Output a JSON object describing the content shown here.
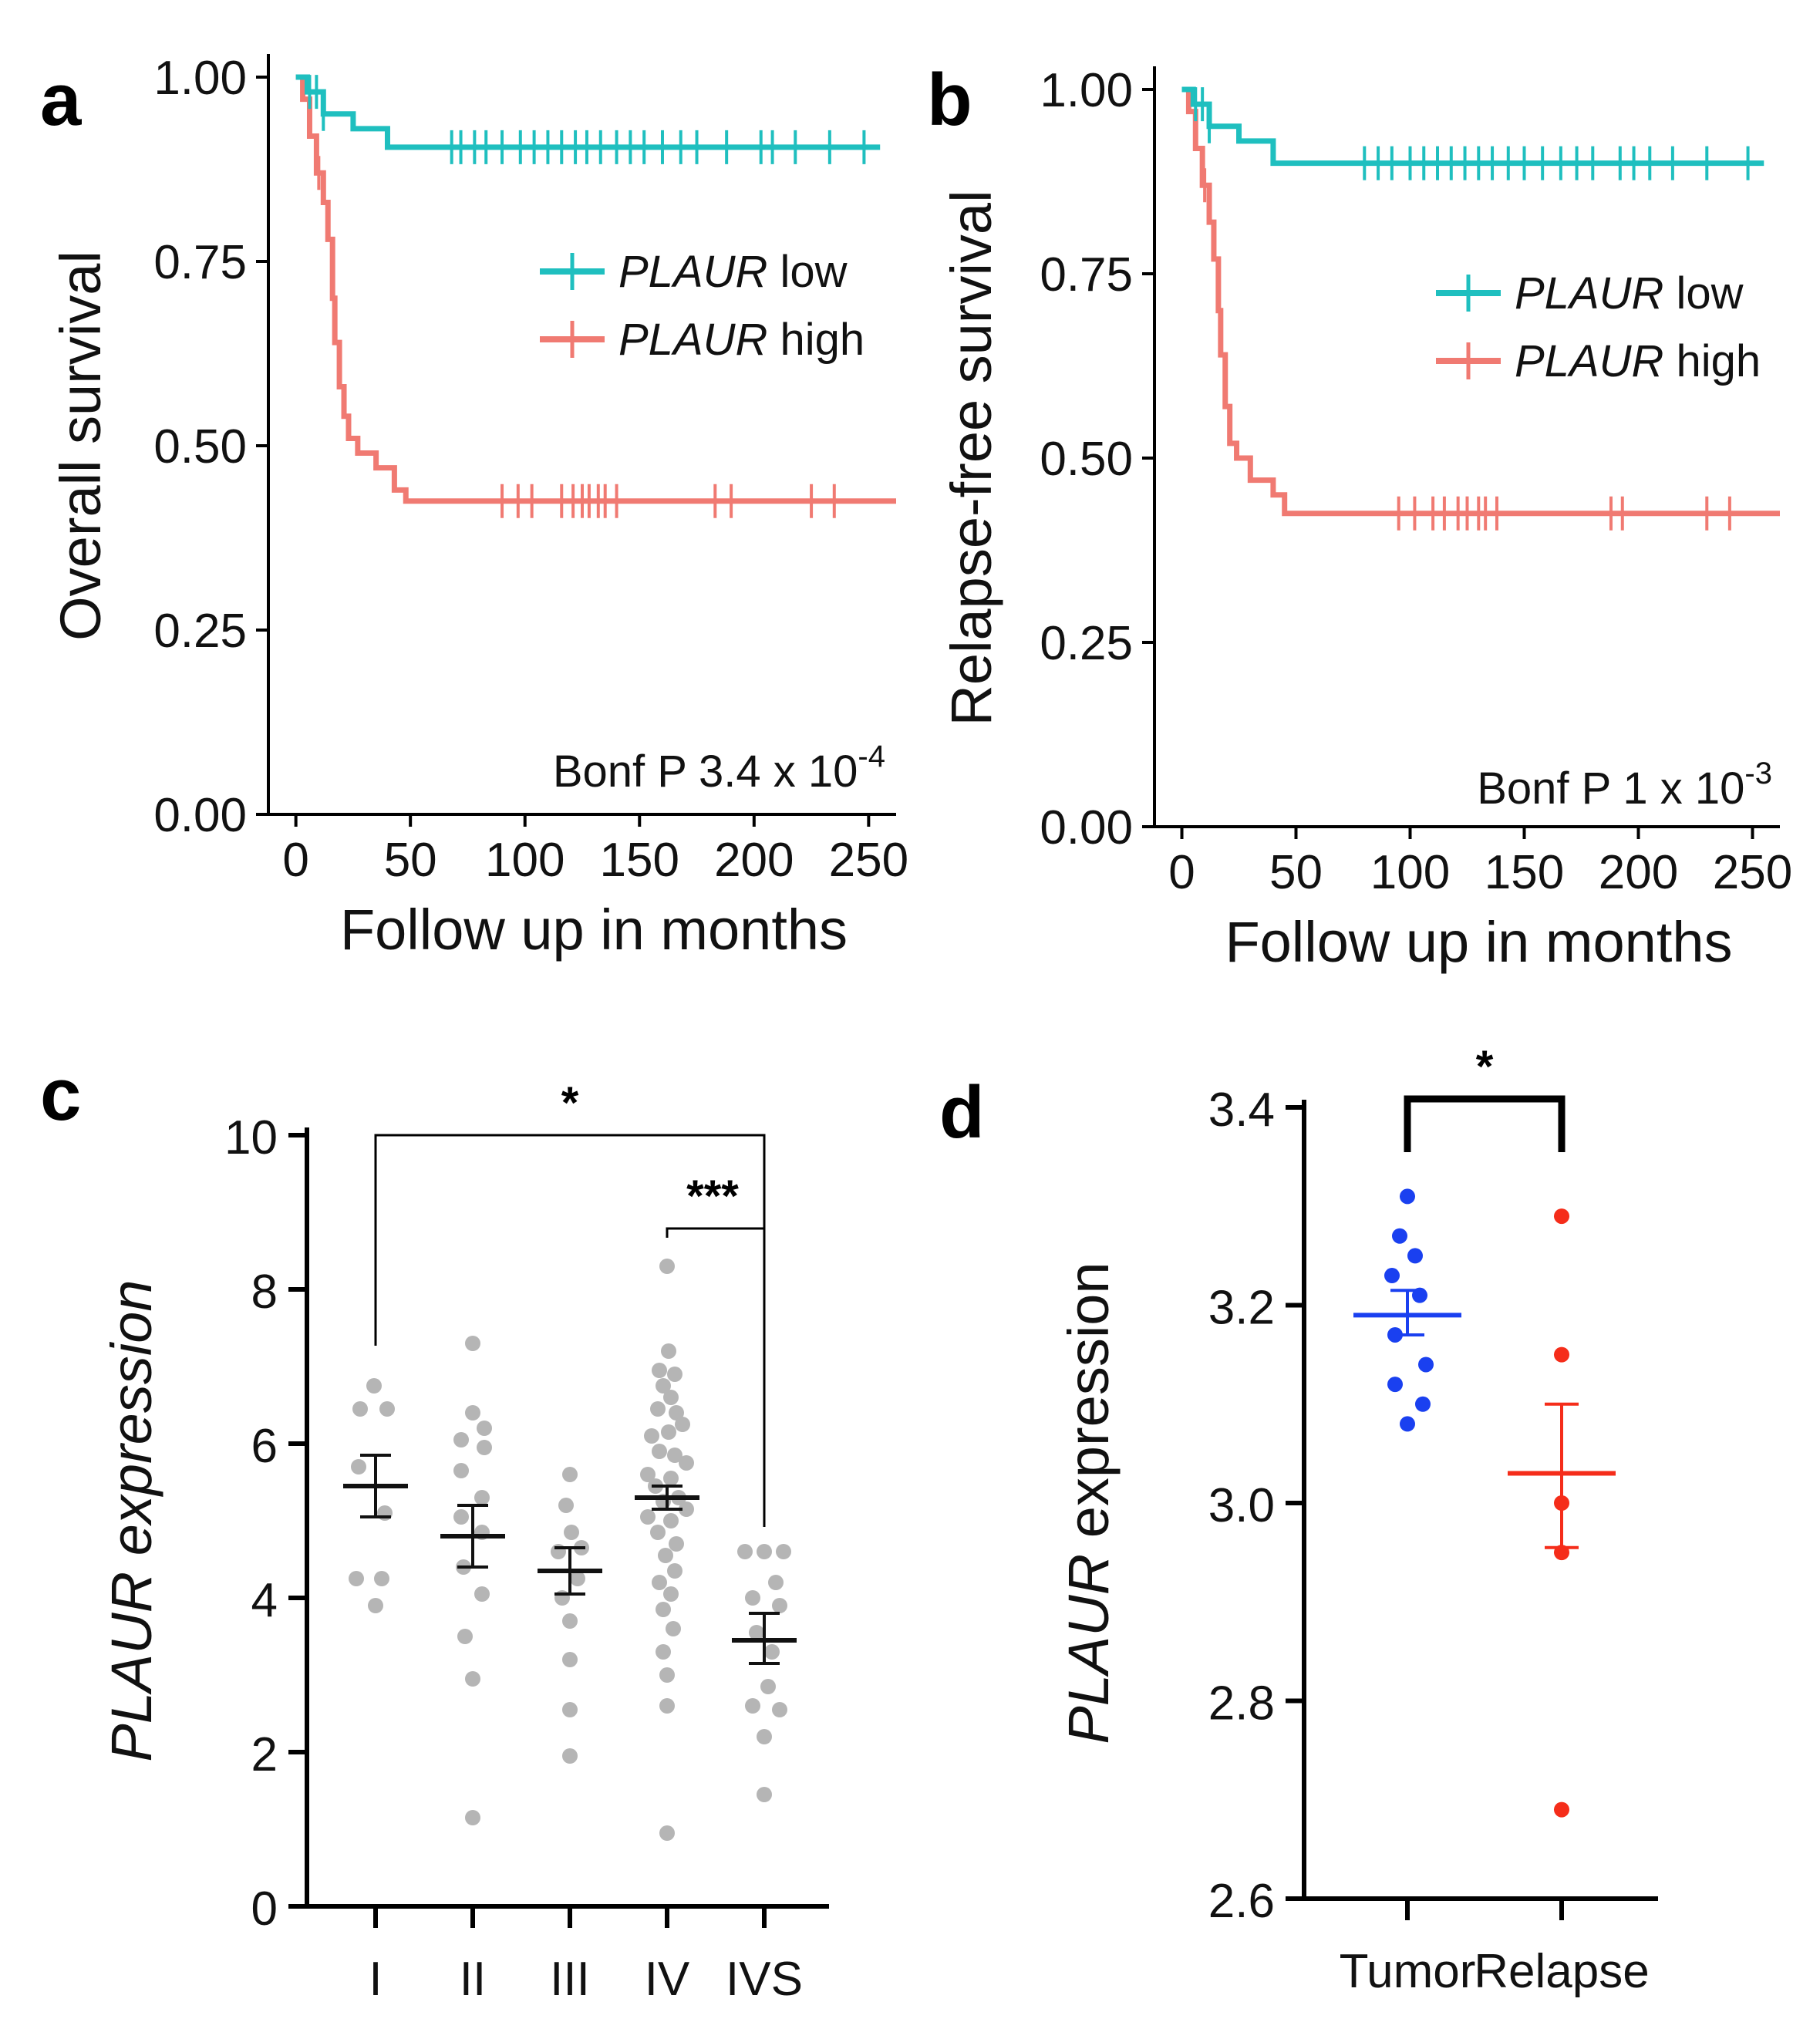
{
  "panels": {
    "a": "a",
    "b": "b",
    "c": "c",
    "d": "d"
  },
  "colors": {
    "low": "#1fbfbf",
    "high": "#f07a72",
    "dots": "#b5b5b5",
    "tumor": "#1a40f0",
    "relapse": "#f52d1a"
  },
  "chart_data": [
    {
      "id": "a",
      "type": "line",
      "title": "",
      "ylabel": "Overall survival",
      "xlabel": "Follow up in months",
      "xlim": [
        -12,
        262
      ],
      "ylim": [
        0,
        1.0
      ],
      "xticks": [
        0,
        50,
        100,
        150,
        200,
        250
      ],
      "yticks": [
        0.0,
        0.25,
        0.5,
        0.75,
        1.0
      ],
      "xtick_labels": [
        "0",
        "50",
        "100",
        "150",
        "200",
        "250"
      ],
      "ytick_labels": [
        "0.00",
        "0.25",
        "0.50",
        "0.75",
        "1.00"
      ],
      "legend": [
        {
          "gene": "PLAUR",
          "label": " low"
        },
        {
          "gene": "PLAUR",
          "label": " high"
        }
      ],
      "annotation": {
        "text": "Bonf P 3.4 x 10",
        "sup": "-4"
      },
      "series": [
        {
          "name": "PLAUR low",
          "steps": [
            [
              0,
              1.0
            ],
            [
              5,
              0.98
            ],
            [
              12,
              0.95
            ],
            [
              25,
              0.93
            ],
            [
              40,
              0.905
            ],
            [
              255,
              0.905
            ]
          ],
          "censor_x": [
            6,
            9,
            12,
            68,
            72,
            78,
            83,
            90,
            98,
            104,
            110,
            116,
            122,
            127,
            133,
            140,
            146,
            152,
            160,
            168,
            175,
            188,
            203,
            208,
            218,
            233,
            248
          ]
        },
        {
          "name": "PLAUR high",
          "steps": [
            [
              0,
              1.0
            ],
            [
              3,
              0.97
            ],
            [
              6,
              0.92
            ],
            [
              9,
              0.87
            ],
            [
              12,
              0.83
            ],
            [
              14,
              0.78
            ],
            [
              16,
              0.7
            ],
            [
              17,
              0.64
            ],
            [
              19,
              0.58
            ],
            [
              21,
              0.54
            ],
            [
              23,
              0.51
            ],
            [
              27,
              0.49
            ],
            [
              35,
              0.47
            ],
            [
              43,
              0.44
            ],
            [
              48,
              0.425
            ],
            [
              262,
              0.425
            ]
          ],
          "censor_x": [
            10,
            90,
            97,
            103,
            116,
            121,
            125,
            128,
            132,
            135,
            140,
            183,
            190,
            225,
            235
          ]
        }
      ]
    },
    {
      "id": "b",
      "type": "line",
      "title": "",
      "ylabel": "Relapse-free survival",
      "xlabel": "Follow up in months",
      "xlim": [
        -12,
        262
      ],
      "ylim": [
        0,
        1.0
      ],
      "xticks": [
        0,
        50,
        100,
        150,
        200,
        250
      ],
      "yticks": [
        0.0,
        0.25,
        0.5,
        0.75,
        1.0
      ],
      "xtick_labels": [
        "0",
        "50",
        "100",
        "150",
        "200",
        "250"
      ],
      "ytick_labels": [
        "0.00",
        "0.25",
        "0.50",
        "0.75",
        "1.00"
      ],
      "legend": [
        {
          "gene": "PLAUR",
          "label": " low"
        },
        {
          "gene": "PLAUR",
          "label": " high"
        }
      ],
      "annotation": {
        "text": "Bonf P 1 x 10",
        "sup": "-3"
      },
      "series": [
        {
          "name": "PLAUR low",
          "steps": [
            [
              0,
              1.0
            ],
            [
              5,
              0.98
            ],
            [
              12,
              0.95
            ],
            [
              25,
              0.93
            ],
            [
              40,
              0.9
            ],
            [
              255,
              0.9
            ]
          ],
          "censor_x": [
            6,
            9,
            12,
            80,
            86,
            92,
            100,
            106,
            112,
            118,
            124,
            130,
            136,
            143,
            150,
            158,
            166,
            173,
            180,
            192,
            198,
            205,
            215,
            230,
            248
          ]
        },
        {
          "name": "PLAUR high",
          "steps": [
            [
              0,
              1.0
            ],
            [
              3,
              0.97
            ],
            [
              6,
              0.92
            ],
            [
              9,
              0.87
            ],
            [
              12,
              0.82
            ],
            [
              14,
              0.77
            ],
            [
              16,
              0.7
            ],
            [
              17,
              0.64
            ],
            [
              19,
              0.57
            ],
            [
              21,
              0.52
            ],
            [
              24,
              0.5
            ],
            [
              30,
              0.47
            ],
            [
              40,
              0.45
            ],
            [
              45,
              0.425
            ],
            [
              262,
              0.425
            ]
          ],
          "censor_x": [
            10,
            95,
            102,
            110,
            115,
            121,
            125,
            130,
            133,
            138,
            188,
            193,
            230,
            240
          ]
        }
      ]
    },
    {
      "id": "c",
      "type": "scatter",
      "title": "",
      "ylabel": "PLAUR expression",
      "ylabel_italic_word": "PLAUR",
      "ylabel_rest": " expression",
      "xlabel": "",
      "categories": [
        "I",
        "II",
        "III",
        "IV",
        "IVS"
      ],
      "ylim": [
        0,
        10
      ],
      "yticks": [
        0,
        2,
        4,
        6,
        8,
        10
      ],
      "ytick_labels": [
        "0",
        "2",
        "4",
        "6",
        "8",
        "10"
      ],
      "groups": [
        {
          "name": "I",
          "mean": 5.45,
          "sem_low": 5.05,
          "sem_high": 5.85,
          "points": [
            [
              -0.02,
              6.75
            ],
            [
              -0.2,
              6.45
            ],
            [
              0.15,
              6.45
            ],
            [
              -0.22,
              5.7
            ],
            [
              0.12,
              5.1
            ],
            [
              -0.25,
              4.25
            ],
            [
              0.08,
              4.25
            ],
            [
              0.0,
              3.9
            ]
          ]
        },
        {
          "name": "II",
          "mean": 4.8,
          "sem_low": 4.4,
          "sem_high": 5.2,
          "points": [
            [
              0.0,
              7.3
            ],
            [
              0.0,
              6.4
            ],
            [
              0.15,
              6.2
            ],
            [
              -0.15,
              6.05
            ],
            [
              0.15,
              5.95
            ],
            [
              -0.15,
              5.65
            ],
            [
              0.12,
              5.3
            ],
            [
              -0.15,
              5.05
            ],
            [
              0.12,
              4.85
            ],
            [
              -0.12,
              4.4
            ],
            [
              0.12,
              4.05
            ],
            [
              -0.1,
              3.5
            ],
            [
              0.0,
              2.95
            ],
            [
              0.0,
              1.15
            ]
          ]
        },
        {
          "name": "III",
          "mean": 4.35,
          "sem_low": 4.05,
          "sem_high": 4.65,
          "points": [
            [
              0.0,
              5.6
            ],
            [
              -0.05,
              5.2
            ],
            [
              0.02,
              4.85
            ],
            [
              0.15,
              4.65
            ],
            [
              -0.15,
              4.6
            ],
            [
              0.1,
              4.25
            ],
            [
              -0.1,
              4.0
            ],
            [
              0.0,
              3.7
            ],
            [
              0.0,
              3.2
            ],
            [
              0.0,
              2.55
            ],
            [
              0.0,
              1.95
            ]
          ]
        },
        {
          "name": "IV",
          "mean": 5.3,
          "sem_low": 5.15,
          "sem_high": 5.45,
          "points": [
            [
              0.0,
              8.3
            ],
            [
              0.02,
              7.2
            ],
            [
              -0.1,
              6.95
            ],
            [
              0.1,
              6.9
            ],
            [
              -0.05,
              6.75
            ],
            [
              0.05,
              6.6
            ],
            [
              -0.12,
              6.45
            ],
            [
              0.12,
              6.4
            ],
            [
              0.2,
              6.25
            ],
            [
              0.02,
              6.15
            ],
            [
              -0.2,
              6.1
            ],
            [
              -0.1,
              5.9
            ],
            [
              0.1,
              5.85
            ],
            [
              0.25,
              5.75
            ],
            [
              -0.25,
              5.6
            ],
            [
              0.05,
              5.55
            ],
            [
              -0.15,
              5.45
            ],
            [
              0.15,
              5.3
            ],
            [
              -0.05,
              5.25
            ],
            [
              0.25,
              5.15
            ],
            [
              -0.25,
              5.05
            ],
            [
              0.05,
              5.0
            ],
            [
              -0.12,
              4.85
            ],
            [
              0.12,
              4.7
            ],
            [
              -0.02,
              4.55
            ],
            [
              0.1,
              4.35
            ],
            [
              -0.1,
              4.2
            ],
            [
              0.05,
              4.05
            ],
            [
              -0.05,
              3.85
            ],
            [
              0.08,
              3.6
            ],
            [
              -0.05,
              3.3
            ],
            [
              0.0,
              3.0
            ],
            [
              0.0,
              2.6
            ],
            [
              0.0,
              0.95
            ]
          ]
        },
        {
          "name": "IVS",
          "mean": 3.45,
          "sem_low": 3.15,
          "sem_high": 3.8,
          "points": [
            [
              -0.25,
              4.6
            ],
            [
              0.0,
              4.6
            ],
            [
              0.25,
              4.6
            ],
            [
              0.15,
              4.2
            ],
            [
              -0.15,
              4.0
            ],
            [
              0.2,
              3.9
            ],
            [
              -0.1,
              3.55
            ],
            [
              0.1,
              3.3
            ],
            [
              0.05,
              2.85
            ],
            [
              -0.15,
              2.6
            ],
            [
              0.2,
              2.55
            ],
            [
              0.0,
              2.2
            ],
            [
              0.0,
              1.45
            ]
          ]
        }
      ],
      "comparisons": [
        {
          "from": "I",
          "to": "IVS",
          "label": "*"
        },
        {
          "from": "IV",
          "to": "IVS",
          "label": "***"
        }
      ]
    },
    {
      "id": "d",
      "type": "scatter",
      "title": "",
      "ylabel": "PLAUR expression",
      "ylabel_italic_word": "PLAUR",
      "ylabel_rest": " expression",
      "xlabel": "",
      "categories": [
        "Tumor",
        "Relapse"
      ],
      "ylim": [
        2.6,
        3.4
      ],
      "yticks": [
        2.6,
        2.8,
        3.0,
        3.2,
        3.4
      ],
      "ytick_labels": [
        "2.6",
        "2.8",
        "3.0",
        "3.2",
        "3.4"
      ],
      "groups": [
        {
          "name": "Tumor",
          "mean": 3.19,
          "sem_low": 3.17,
          "sem_high": 3.215,
          "points": [
            [
              0.0,
              3.31
            ],
            [
              -0.05,
              3.27
            ],
            [
              0.05,
              3.25
            ],
            [
              -0.1,
              3.23
            ],
            [
              0.08,
              3.21
            ],
            [
              -0.08,
              3.17
            ],
            [
              0.12,
              3.14
            ],
            [
              -0.08,
              3.12
            ],
            [
              0.1,
              3.1
            ],
            [
              0.0,
              3.08
            ]
          ]
        },
        {
          "name": "Relapse",
          "mean": 3.03,
          "sem_low": 2.955,
          "sem_high": 3.1,
          "points": [
            [
              0.0,
              3.29
            ],
            [
              0.0,
              3.15
            ],
            [
              0.0,
              3.0
            ],
            [
              0.0,
              2.95
            ],
            [
              0.0,
              2.69
            ]
          ]
        }
      ],
      "comparisons": [
        {
          "from": "Tumor",
          "to": "Relapse",
          "label": "*"
        }
      ]
    }
  ]
}
